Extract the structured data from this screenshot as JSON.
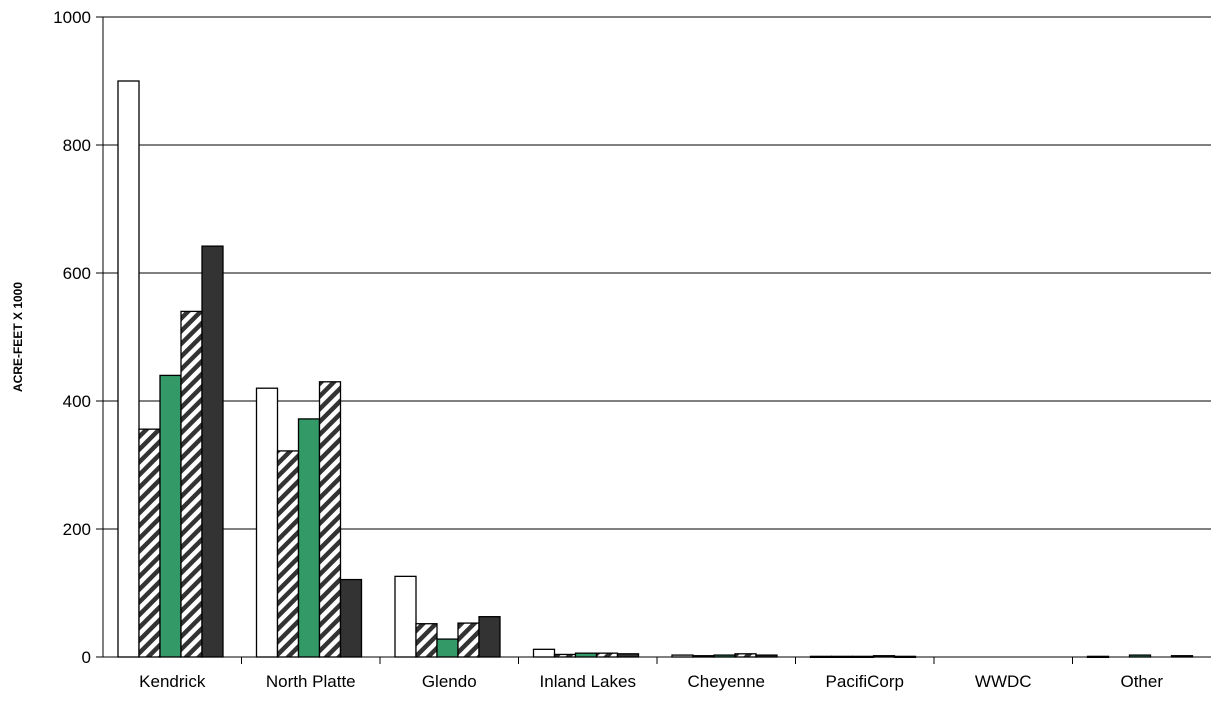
{
  "chart_data": {
    "type": "bar",
    "title": "",
    "xlabel": "",
    "ylabel": "ACRE-FEET X 1000",
    "ylim": [
      0,
      1000
    ],
    "yticks": [
      0,
      200,
      400,
      600,
      800,
      1000
    ],
    "grid": true,
    "legend": "none",
    "categories": [
      "Kendrick",
      "North Platte",
      "Glendo",
      "Inland Lakes",
      "Cheyenne",
      "PacifiCorp",
      "WWDC",
      "Other"
    ],
    "series": [
      {
        "fill": "#ffffff",
        "pattern": "none",
        "values": [
          900,
          420,
          126,
          12,
          3,
          1,
          0,
          1
        ]
      },
      {
        "fill": "#ffffff",
        "pattern": "diagonal-hatch",
        "values": [
          356,
          322,
          52,
          4,
          2,
          1,
          0,
          0
        ]
      },
      {
        "fill": "#339966",
        "pattern": "none",
        "values": [
          440,
          372,
          28,
          6,
          3,
          1,
          0,
          3
        ]
      },
      {
        "fill": "#ffffff",
        "pattern": "diagonal-hatch",
        "values": [
          540,
          430,
          53,
          6,
          5,
          2,
          0,
          0
        ]
      },
      {
        "fill": "#333333",
        "pattern": "none",
        "values": [
          642,
          121,
          63,
          5,
          3,
          1,
          0,
          2
        ]
      }
    ]
  }
}
